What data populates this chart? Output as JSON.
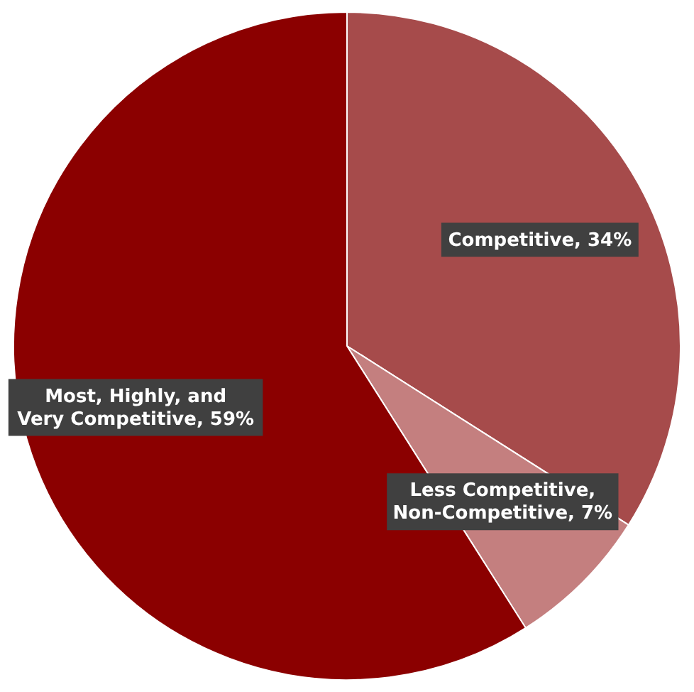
{
  "chart_data": {
    "type": "pie",
    "categories": [
      "Competitive",
      "Less Competitive, Non-Competitive",
      "Most, Highly, and Very Competitive"
    ],
    "values": [
      34,
      7,
      59
    ],
    "value_labels": [
      "34%",
      "7%",
      "59%"
    ],
    "colors": [
      "#a64b4b",
      "#c47f7f",
      "#8b0000"
    ],
    "legend": false
  }
}
